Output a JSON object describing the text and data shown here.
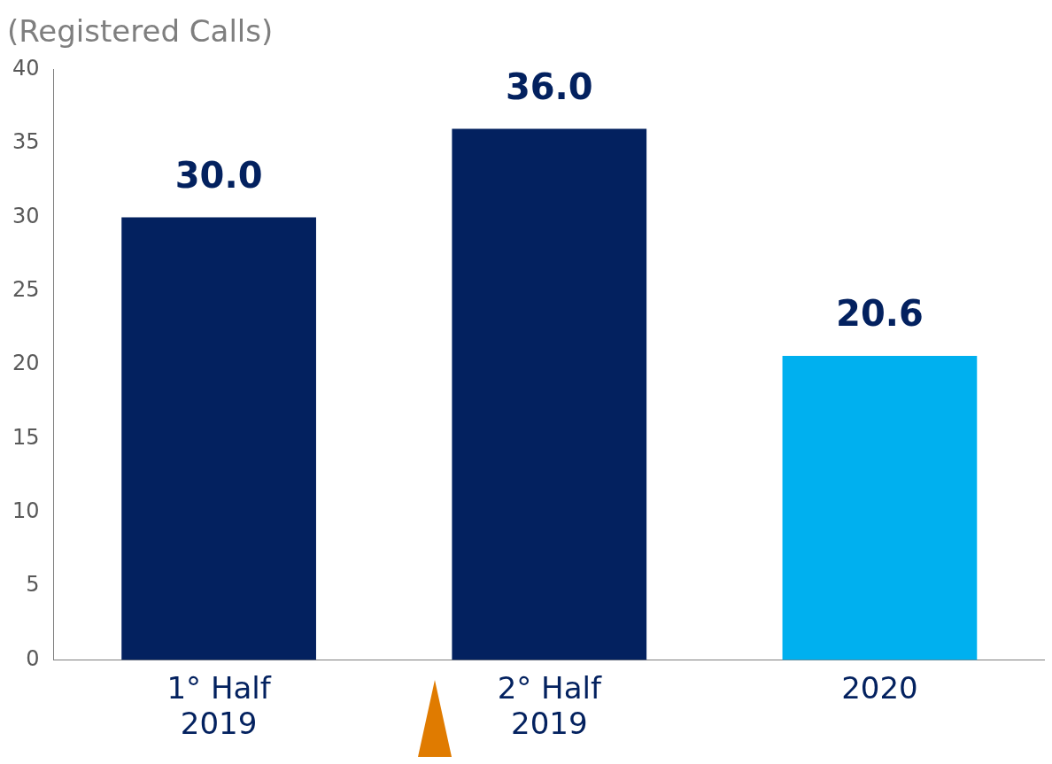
{
  "chart_data": {
    "type": "bar",
    "title": "(Registered Calls)",
    "categories": [
      "1° Half 2019",
      "2° Half 2019",
      "2020"
    ],
    "values": [
      30,
      36,
      20.6
    ],
    "colors": [
      "#03215f",
      "#03215f",
      "#00b0ef"
    ],
    "value_labels": [
      "30.0",
      "36.0",
      "20.6"
    ],
    "ylim": [
      0,
      40
    ],
    "yticks": [
      0,
      5,
      10,
      15,
      20,
      25,
      30,
      35,
      40
    ],
    "grid": false,
    "legend": false
  }
}
